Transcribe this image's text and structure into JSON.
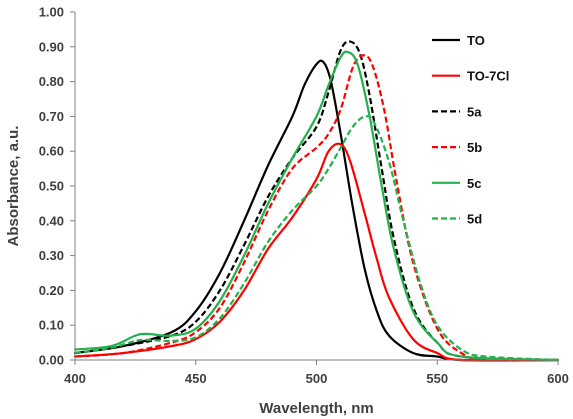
{
  "chart_data": {
    "type": "line",
    "title": "",
    "xlabel": "Wavelength, nm",
    "ylabel": "Absorbance, a.u.",
    "xlim": [
      400,
      600
    ],
    "ylim": [
      0,
      1
    ],
    "x_ticks": [
      400,
      450,
      500,
      550,
      600
    ],
    "x_tick_labels": [
      "400",
      "450",
      "500",
      "550",
      "600"
    ],
    "y_ticks": [
      0,
      0.1,
      0.2,
      0.3,
      0.4,
      0.5,
      0.6,
      0.7,
      0.8,
      0.9,
      1.0
    ],
    "y_tick_labels": [
      "0.00",
      "0.10",
      "0.20",
      "0.30",
      "0.40",
      "0.50",
      "0.60",
      "0.70",
      "0.80",
      "0.90",
      "1.00"
    ],
    "grid": false,
    "legend": "right",
    "series": [
      {
        "name": "TO",
        "color": "#000000",
        "dash": "solid",
        "points": [
          [
            400,
            0.02
          ],
          [
            420,
            0.04
          ],
          [
            440,
            0.08
          ],
          [
            450,
            0.14
          ],
          [
            460,
            0.25
          ],
          [
            470,
            0.4
          ],
          [
            480,
            0.56
          ],
          [
            490,
            0.7
          ],
          [
            495,
            0.79
          ],
          [
            500,
            0.85
          ],
          [
            503,
            0.855
          ],
          [
            506,
            0.8
          ],
          [
            510,
            0.65
          ],
          [
            515,
            0.44
          ],
          [
            520,
            0.26
          ],
          [
            525,
            0.14
          ],
          [
            530,
            0.07
          ],
          [
            540,
            0.02
          ],
          [
            550,
            0.01
          ],
          [
            560,
            0.0
          ],
          [
            600,
            0.0
          ]
        ]
      },
      {
        "name": "TO-7Cl",
        "color": "#ff0000",
        "dash": "solid",
        "points": [
          [
            400,
            0.01
          ],
          [
            420,
            0.02
          ],
          [
            440,
            0.04
          ],
          [
            450,
            0.06
          ],
          [
            460,
            0.11
          ],
          [
            470,
            0.2
          ],
          [
            480,
            0.32
          ],
          [
            490,
            0.41
          ],
          [
            500,
            0.52
          ],
          [
            505,
            0.6
          ],
          [
            510,
            0.62
          ],
          [
            514,
            0.57
          ],
          [
            520,
            0.42
          ],
          [
            525,
            0.29
          ],
          [
            530,
            0.18
          ],
          [
            540,
            0.06
          ],
          [
            550,
            0.02
          ],
          [
            560,
            0.0
          ],
          [
            600,
            0.0
          ]
        ]
      },
      {
        "name": "5a",
        "color": "#000000",
        "dash": "dash",
        "points": [
          [
            400,
            0.02
          ],
          [
            420,
            0.04
          ],
          [
            440,
            0.07
          ],
          [
            450,
            0.11
          ],
          [
            460,
            0.2
          ],
          [
            470,
            0.33
          ],
          [
            480,
            0.47
          ],
          [
            490,
            0.58
          ],
          [
            500,
            0.67
          ],
          [
            505,
            0.77
          ],
          [
            510,
            0.89
          ],
          [
            514,
            0.915
          ],
          [
            518,
            0.88
          ],
          [
            522,
            0.76
          ],
          [
            527,
            0.55
          ],
          [
            532,
            0.35
          ],
          [
            540,
            0.15
          ],
          [
            550,
            0.05
          ],
          [
            560,
            0.01
          ],
          [
            600,
            0.0
          ]
        ]
      },
      {
        "name": "5b",
        "color": "#ff0000",
        "dash": "dash",
        "points": [
          [
            400,
            0.01
          ],
          [
            420,
            0.02
          ],
          [
            440,
            0.05
          ],
          [
            450,
            0.08
          ],
          [
            460,
            0.15
          ],
          [
            470,
            0.28
          ],
          [
            480,
            0.43
          ],
          [
            490,
            0.55
          ],
          [
            500,
            0.61
          ],
          [
            505,
            0.65
          ],
          [
            510,
            0.72
          ],
          [
            515,
            0.84
          ],
          [
            519,
            0.875
          ],
          [
            523,
            0.85
          ],
          [
            528,
            0.72
          ],
          [
            533,
            0.52
          ],
          [
            540,
            0.28
          ],
          [
            550,
            0.09
          ],
          [
            560,
            0.02
          ],
          [
            570,
            0.0
          ],
          [
            600,
            0.0
          ]
        ]
      },
      {
        "name": "5c",
        "color": "#22b14c",
        "dash": "solid",
        "points": [
          [
            400,
            0.03
          ],
          [
            415,
            0.04
          ],
          [
            425,
            0.07
          ],
          [
            430,
            0.075
          ],
          [
            440,
            0.07
          ],
          [
            450,
            0.09
          ],
          [
            460,
            0.17
          ],
          [
            470,
            0.3
          ],
          [
            480,
            0.45
          ],
          [
            490,
            0.58
          ],
          [
            500,
            0.7
          ],
          [
            505,
            0.79
          ],
          [
            510,
            0.87
          ],
          [
            513,
            0.885
          ],
          [
            517,
            0.85
          ],
          [
            522,
            0.7
          ],
          [
            527,
            0.5
          ],
          [
            532,
            0.32
          ],
          [
            540,
            0.14
          ],
          [
            550,
            0.05
          ],
          [
            560,
            0.01
          ],
          [
            600,
            0.0
          ]
        ]
      },
      {
        "name": "5d",
        "color": "#22b14c",
        "dash": "dash",
        "points": [
          [
            400,
            0.02
          ],
          [
            415,
            0.035
          ],
          [
            425,
            0.055
          ],
          [
            430,
            0.058
          ],
          [
            440,
            0.055
          ],
          [
            450,
            0.065
          ],
          [
            460,
            0.12
          ],
          [
            470,
            0.22
          ],
          [
            480,
            0.34
          ],
          [
            490,
            0.43
          ],
          [
            500,
            0.5
          ],
          [
            505,
            0.55
          ],
          [
            510,
            0.61
          ],
          [
            515,
            0.67
          ],
          [
            520,
            0.7
          ],
          [
            524,
            0.68
          ],
          [
            530,
            0.57
          ],
          [
            536,
            0.4
          ],
          [
            543,
            0.22
          ],
          [
            550,
            0.1
          ],
          [
            560,
            0.03
          ],
          [
            570,
            0.01
          ],
          [
            600,
            0.0
          ]
        ]
      }
    ]
  }
}
